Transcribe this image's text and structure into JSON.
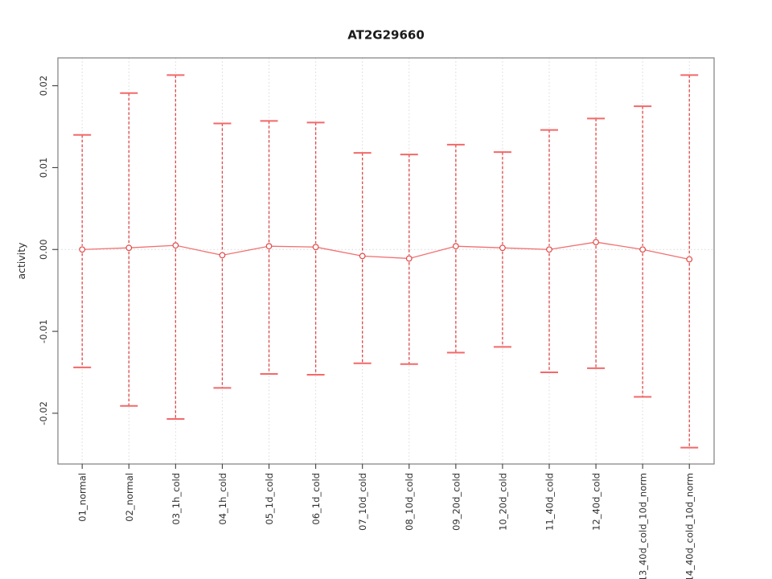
{
  "chart_data": {
    "type": "scatter",
    "subtype": "means-with-error-bars-connected-by-line",
    "title": "AT2G29660",
    "xlabel": "",
    "ylabel": "activity",
    "categories": [
      "01_normal",
      "02_normal",
      "03_1h_cold",
      "04_1h_cold",
      "05_1d_cold",
      "06_1d_cold",
      "07_10d_cold",
      "08_10d_cold",
      "09_20d_cold",
      "10_20d_cold",
      "11_40d_cold",
      "12_40d_cold",
      "13_40d_cold_10d_norm",
      "14_40d_cold_10d_norm"
    ],
    "series": [
      {
        "name": "activity",
        "values": [
          0.0,
          0.0002,
          0.0005,
          -0.0007,
          0.0004,
          0.0003,
          -0.0008,
          -0.0011,
          0.0004,
          0.0002,
          0.0,
          0.0009,
          0.0,
          -0.0012
        ],
        "upper": [
          0.014,
          0.0191,
          0.0213,
          0.0154,
          0.0157,
          0.0155,
          0.0118,
          0.0116,
          0.0128,
          0.0119,
          0.0146,
          0.016,
          0.0175,
          0.0213
        ],
        "lower": [
          -0.0144,
          -0.0191,
          -0.0207,
          -0.0169,
          -0.0152,
          -0.0153,
          -0.0139,
          -0.014,
          -0.0126,
          -0.0119,
          -0.015,
          -0.0145,
          -0.018,
          -0.0242
        ]
      }
    ],
    "yticks": [
      -0.02,
      -0.01,
      0,
      0.01,
      0.02
    ],
    "ytick_labels": [
      "-0.02",
      "-0.01",
      "0.00",
      "0.01",
      "0.02"
    ],
    "ylim": [
      -0.0262,
      0.0234
    ],
    "xlim": [
      0.48,
      14.53
    ],
    "grid": {
      "vertical_dotted_per_category": true,
      "horizontal_dotted_zero_line": true
    },
    "legend_position": "none",
    "point_marker": "open-circle",
    "error_bar_line_style": "dashed",
    "colors": {
      "error_dash": "#e04848",
      "cap": "#f36868",
      "line": "#ef6060",
      "marker": "#e04848",
      "marker_fill": "#ffffff",
      "grid": "#d8d8d8",
      "box": "#7f7f7f",
      "tick": "#3f3f3f",
      "text": "#2e2e2e",
      "background": "#ffffff"
    }
  }
}
